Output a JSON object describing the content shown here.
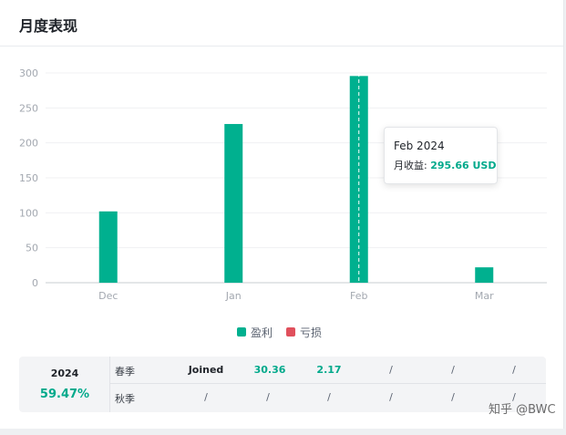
{
  "card": {
    "title": "月度表现"
  },
  "chart_data": {
    "type": "bar",
    "categories": [
      "Dec",
      "Jan",
      "Feb",
      "Mar"
    ],
    "series": [
      {
        "name": "盈利",
        "values": [
          102,
          227,
          295.66,
          22
        ],
        "color": "#00b08f"
      },
      {
        "name": "亏损",
        "values": [
          0,
          0,
          0,
          0
        ],
        "color": "#e0505c"
      }
    ],
    "ylim": [
      0,
      300
    ],
    "yticks": [
      0,
      50,
      100,
      150,
      200,
      250,
      300
    ],
    "grid": true,
    "legend_position": "bottom-center",
    "highlighted_category": "Feb"
  },
  "tooltip": {
    "title": "Feb 2024",
    "label": "月收益: ",
    "value": "295.66 USD"
  },
  "legend": [
    {
      "label": "盈利",
      "color": "#00b08f"
    },
    {
      "label": "亏损",
      "color": "#e0505c"
    }
  ],
  "seasons": {
    "year": "2024",
    "percent": "59.47%",
    "rows": [
      {
        "name": "春季",
        "cells": [
          "Joined",
          "30.36",
          "2.17",
          "/",
          "/",
          "/"
        ]
      },
      {
        "name": "秋季",
        "cells": [
          "/",
          "/",
          "/",
          "/",
          "/",
          "/"
        ]
      }
    ]
  },
  "watermark": "知乎 @BWC"
}
